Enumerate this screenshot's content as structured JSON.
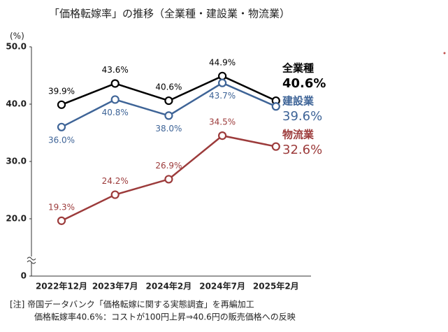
{
  "chart_data": {
    "type": "line",
    "title": "「価格転嫁率」の推移（全業種・建設業・物流業）",
    "y_label": "(%)",
    "categories": [
      "2022年12月",
      "2023年7月",
      "2024年2月",
      "2024年7月",
      "2025年2月"
    ],
    "series": [
      {
        "name": "全業種",
        "color": "#000000",
        "values": [
          39.9,
          43.6,
          40.6,
          44.9,
          40.6
        ],
        "value_labels": [
          "39.9%",
          "43.6%",
          "40.6%",
          "44.9%",
          "40.6%"
        ]
      },
      {
        "name": "建設業",
        "color": "#3e6497",
        "values": [
          36.0,
          40.8,
          38.0,
          43.7,
          39.6
        ],
        "value_labels": [
          "36.0%",
          "40.8%",
          "38.0%",
          "43.7%",
          "39.6%"
        ]
      },
      {
        "name": "物流業",
        "color": "#9c3b3b",
        "values": [
          19.3,
          24.2,
          26.9,
          34.5,
          32.6
        ],
        "value_labels": [
          "19.3%",
          "24.2%",
          "26.9%",
          "34.5%",
          "32.6%"
        ]
      }
    ],
    "ylim": [
      0,
      50
    ],
    "yticks": [
      0,
      {
        "value": 20,
        "label": "20.0"
      },
      {
        "value": 30,
        "label": "30.0"
      },
      {
        "value": 40,
        "label": "40.0"
      },
      {
        "value": 50,
        "label": "50.0"
      }
    ],
    "axis_break": true,
    "notes": [
      "[注] 帝国データバンク「価格転嫁に関する実態調査」を再編加工",
      "価格転嫁率40.6%：コストが100円上昇⇒40.6円の販売価格への反映"
    ]
  }
}
